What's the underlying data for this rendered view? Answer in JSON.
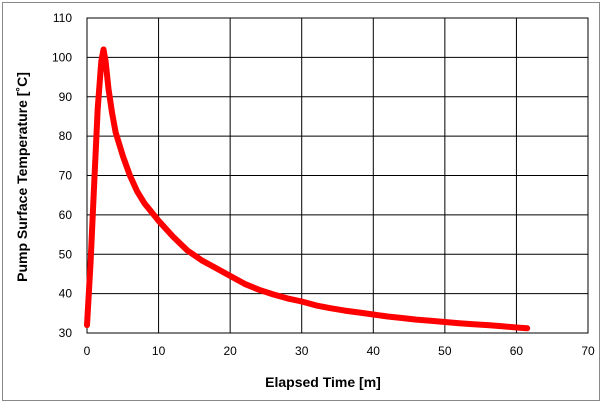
{
  "chart_data": {
    "type": "line",
    "title": "",
    "xlabel": "Elapsed Time [m]",
    "ylabel": "Pump Surface Temperature [˚C]",
    "xlim": [
      0,
      70
    ],
    "ylim": [
      30,
      110
    ],
    "xticks": [
      "0",
      "10",
      "20",
      "30",
      "40",
      "50",
      "60",
      "70"
    ],
    "yticks": [
      "30",
      "40",
      "50",
      "60",
      "70",
      "80",
      "90",
      "100",
      "110"
    ],
    "grid": true,
    "legend": "none",
    "series": [
      {
        "color": "#ff0000",
        "x": [
          0,
          0.5,
          1,
          1.5,
          2,
          2.3,
          2.6,
          3,
          3.5,
          4,
          5,
          6,
          7,
          8,
          10,
          12,
          14,
          16,
          18,
          20,
          22,
          24,
          26,
          28,
          30,
          32,
          34,
          36,
          38,
          40,
          42,
          44,
          46,
          48,
          50,
          52,
          54,
          56,
          58,
          60,
          61.5
        ],
        "y": [
          32,
          48,
          68,
          87,
          99,
          102,
          99,
          92,
          86,
          81,
          75,
          70,
          66,
          63,
          58.5,
          54.5,
          51,
          48.5,
          46.5,
          44.5,
          42.5,
          41,
          39.8,
          38.8,
          38,
          37,
          36.3,
          35.7,
          35.2,
          34.7,
          34.2,
          33.8,
          33.4,
          33.1,
          32.8,
          32.5,
          32.2,
          32,
          31.7,
          31.4,
          31.2
        ]
      }
    ]
  }
}
